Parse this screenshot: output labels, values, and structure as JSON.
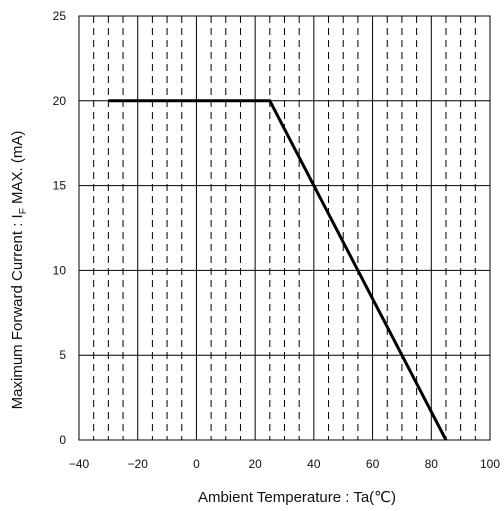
{
  "chart_data": {
    "type": "line",
    "title": "",
    "xlabel": "Ambient Temperature : Ta(℃)",
    "ylabel_prefix": "Maximum Forward Current : I",
    "ylabel_subscript": "F",
    "ylabel_suffix": " MAX. (mA)",
    "xlim": [
      -40,
      100
    ],
    "ylim": [
      0,
      25
    ],
    "x_ticks": [
      -40,
      -20,
      0,
      20,
      40,
      60,
      80,
      100
    ],
    "y_ticks": [
      0,
      5,
      10,
      15,
      20,
      25
    ],
    "x_tick_labels": [
      "−40",
      "−20",
      "0",
      "20",
      "40",
      "60",
      "80",
      "100"
    ],
    "y_tick_labels": [
      "0",
      "5",
      "10",
      "15",
      "20",
      "25"
    ],
    "grid": {
      "major": true,
      "minor_dashed": true,
      "minor_x_step": 5
    },
    "legend": "none",
    "series": [
      {
        "x": [
          -30,
          25,
          85
        ],
        "y": [
          20,
          20,
          0
        ],
        "color": "#000000"
      }
    ]
  }
}
